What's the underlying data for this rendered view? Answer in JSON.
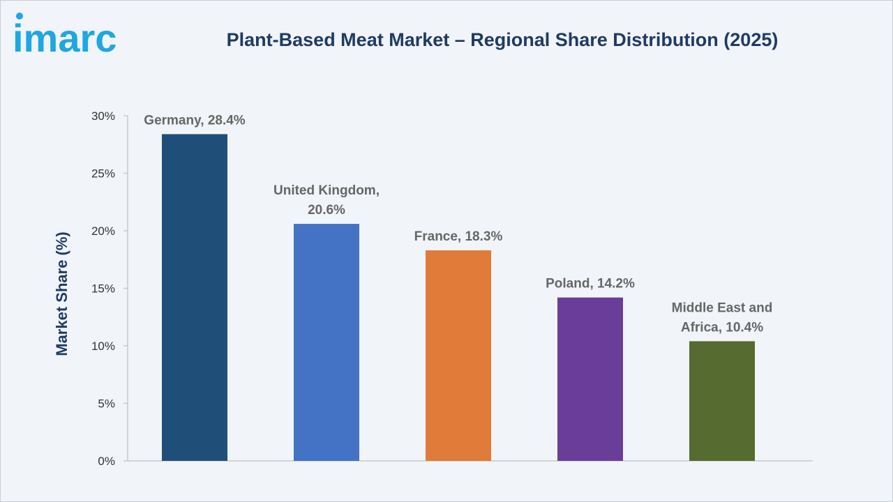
{
  "brand": {
    "logo_text": "imarc",
    "logo_color": "#1ea7e1"
  },
  "chart_data": {
    "type": "bar",
    "title": "Plant-Based Meat Market – Regional Share Distribution (2025)",
    "xlabel": "",
    "ylabel": "Market Share (%)",
    "categories": [
      "Germany",
      "United Kingdom",
      "France",
      "Poland",
      "Middle East and Africa"
    ],
    "values": [
      28.4,
      20.6,
      18.3,
      14.2,
      10.4
    ],
    "data_labels": [
      [
        "Germany, 28.4%"
      ],
      [
        "United Kingdom,",
        "20.6%"
      ],
      [
        "France, 18.3%"
      ],
      [
        "Poland, 14.2%"
      ],
      [
        "Middle East and",
        "Africa, 10.4%"
      ]
    ],
    "colors": [
      "#1f4e79",
      "#4472c4",
      "#e07b39",
      "#6a3d9a",
      "#556b2f"
    ],
    "ylim": [
      0,
      30
    ],
    "yticks": [
      0,
      5,
      10,
      15,
      20,
      25,
      30
    ],
    "ytick_labels": [
      "0%",
      "5%",
      "10%",
      "15%",
      "20%",
      "25%",
      "30%"
    ],
    "grid": false,
    "legend": "none"
  }
}
